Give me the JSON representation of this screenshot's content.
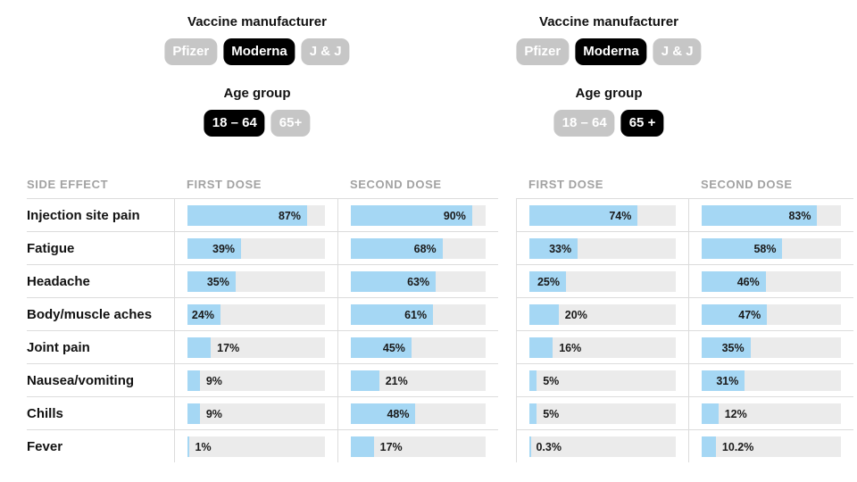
{
  "colors": {
    "bar_fill": "#a5d7f4",
    "bar_track": "#ebebeb",
    "selected_pill": "#000000",
    "unselected_pill": "#c6c6c6",
    "pill_text": "#ffffff",
    "divider": "#dcdcdc",
    "header_text": "#a2a2a2"
  },
  "controls": [
    {
      "id": "left",
      "manufacturer_label": "Vaccine manufacturer",
      "manufacturer_options": [
        {
          "label": "Pfizer",
          "selected": false
        },
        {
          "label": "Moderna",
          "selected": true
        },
        {
          "label": "J & J",
          "selected": false
        }
      ],
      "age_label": "Age group",
      "age_options": [
        {
          "label": "18 – 64",
          "selected": true
        },
        {
          "label": "65+",
          "selected": false
        }
      ]
    },
    {
      "id": "right",
      "manufacturer_label": "Vaccine manufacturer",
      "manufacturer_options": [
        {
          "label": "Pfizer",
          "selected": false
        },
        {
          "label": "Moderna",
          "selected": true
        },
        {
          "label": "J & J",
          "selected": false
        }
      ],
      "age_label": "Age group",
      "age_options": [
        {
          "label": "18 – 64",
          "selected": false
        },
        {
          "label": "65 +",
          "selected": true
        }
      ]
    }
  ],
  "table": {
    "side_effect_header": "SIDE EFFECT",
    "dose_headers": [
      "FIRST DOSE",
      "SECOND DOSE"
    ],
    "rows": [
      {
        "label": "Injection site pain",
        "values": [
          "87%",
          "90%",
          "74%",
          "83%"
        ],
        "pcts": [
          87,
          90,
          74,
          83
        ]
      },
      {
        "label": "Fatigue",
        "values": [
          "39%",
          "68%",
          "33%",
          "58%"
        ],
        "pcts": [
          39,
          68,
          33,
          58
        ]
      },
      {
        "label": "Headache",
        "values": [
          "35%",
          "63%",
          "25%",
          "46%"
        ],
        "pcts": [
          35,
          63,
          25,
          46
        ]
      },
      {
        "label": "Body/muscle aches",
        "values": [
          "24%",
          "61%",
          "20%",
          "47%"
        ],
        "pcts": [
          24,
          61,
          20,
          47
        ]
      },
      {
        "label": "Joint pain",
        "values": [
          "17%",
          "45%",
          "16%",
          "35%"
        ],
        "pcts": [
          17,
          45,
          16,
          35
        ]
      },
      {
        "label": "Nausea/vomiting",
        "values": [
          "9%",
          "21%",
          "5%",
          "31%"
        ],
        "pcts": [
          9,
          21,
          5,
          31
        ]
      },
      {
        "label": "Chills",
        "values": [
          "9%",
          "48%",
          "5%",
          "12%"
        ],
        "pcts": [
          9,
          48,
          5,
          12
        ]
      },
      {
        "label": "Fever",
        "values": [
          "1%",
          "17%",
          "0.3%",
          "10.2%"
        ],
        "pcts": [
          1,
          17,
          0.3,
          10.2
        ]
      }
    ]
  },
  "chart_data": [
    {
      "type": "bar",
      "title": "Moderna · Age 18 – 64",
      "orientation": "horizontal",
      "categories": [
        "Injection site pain",
        "Fatigue",
        "Headache",
        "Body/muscle aches",
        "Joint pain",
        "Nausea/vomiting",
        "Chills",
        "Fever"
      ],
      "series": [
        {
          "name": "FIRST DOSE",
          "values": [
            87,
            39,
            35,
            24,
            17,
            9,
            9,
            1
          ]
        },
        {
          "name": "SECOND DOSE",
          "values": [
            90,
            68,
            63,
            61,
            45,
            21,
            48,
            17
          ]
        }
      ],
      "value_suffix": "%",
      "xlim": [
        0,
        100
      ],
      "grid": false,
      "legend_position": "column-headers"
    },
    {
      "type": "bar",
      "title": "Moderna · Age 65 +",
      "orientation": "horizontal",
      "categories": [
        "Injection site pain",
        "Fatigue",
        "Headache",
        "Body/muscle aches",
        "Joint pain",
        "Nausea/vomiting",
        "Chills",
        "Fever"
      ],
      "series": [
        {
          "name": "FIRST DOSE",
          "values": [
            74,
            33,
            25,
            20,
            16,
            5,
            5,
            0.3
          ]
        },
        {
          "name": "SECOND DOSE",
          "values": [
            83,
            58,
            46,
            47,
            35,
            31,
            12,
            10.2
          ]
        }
      ],
      "value_suffix": "%",
      "xlim": [
        0,
        100
      ],
      "grid": false,
      "legend_position": "column-headers"
    }
  ]
}
